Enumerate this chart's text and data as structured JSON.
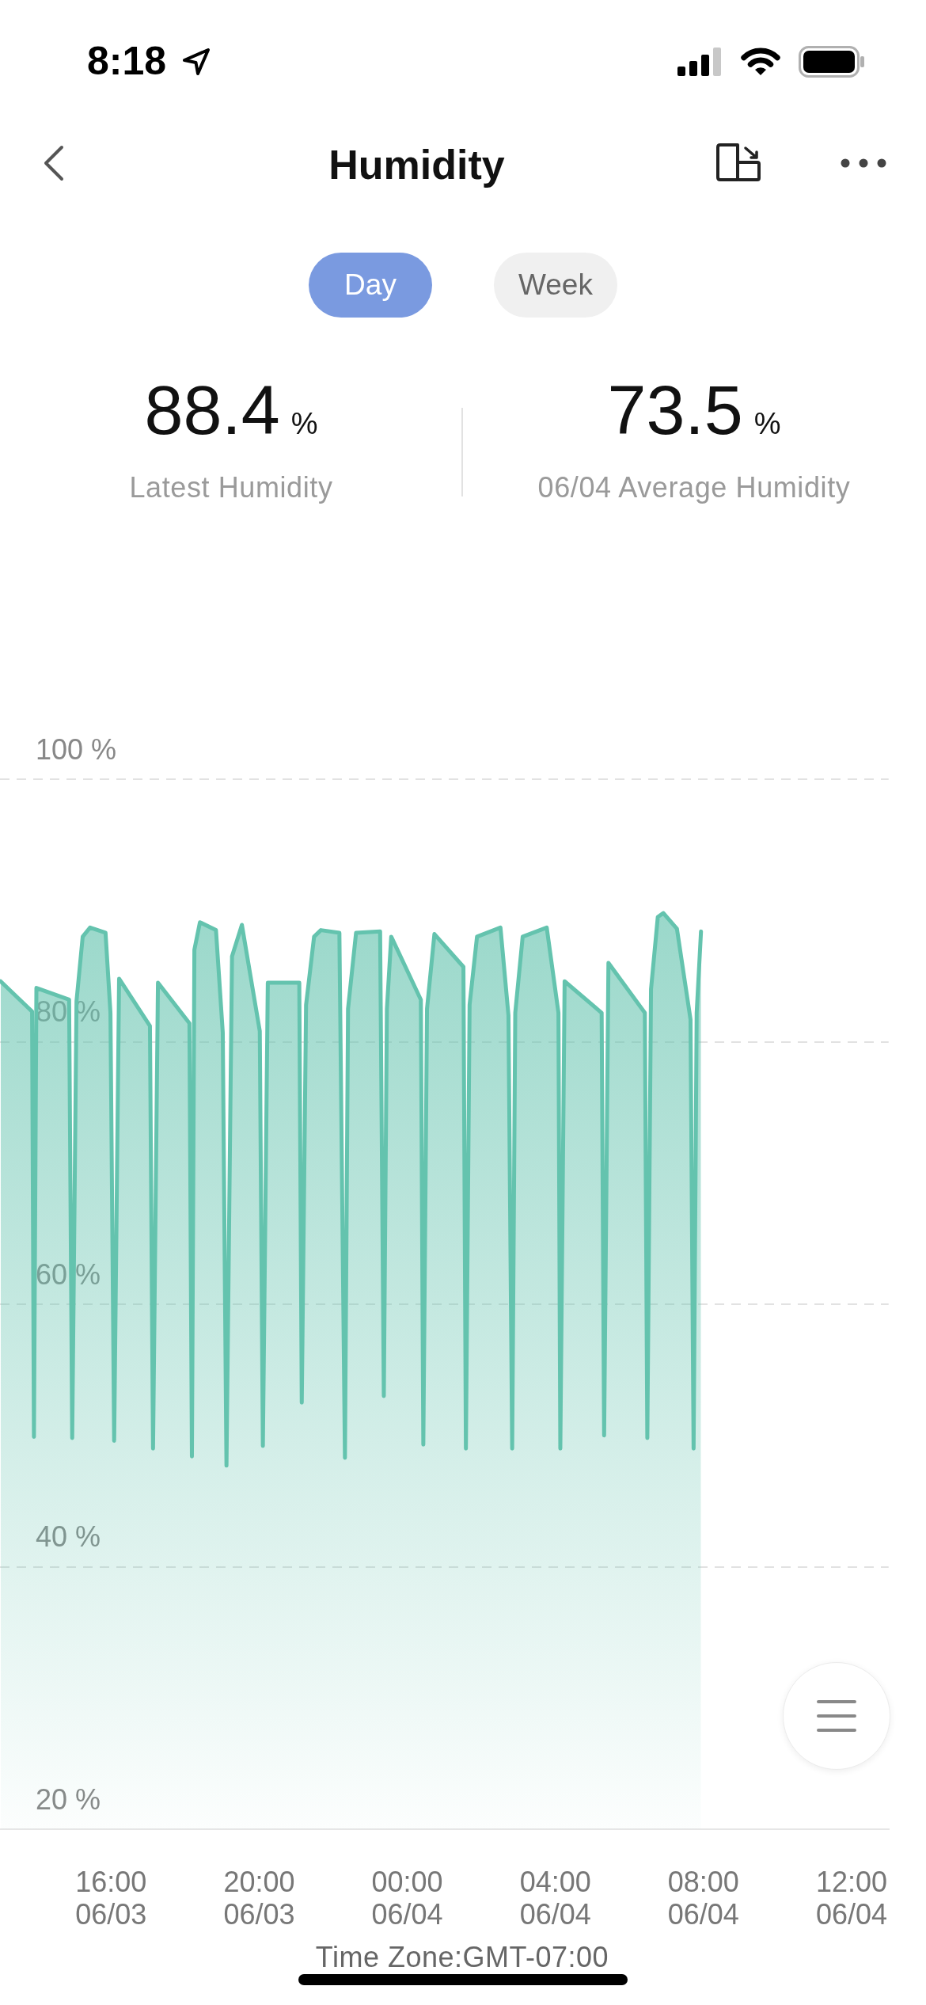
{
  "chart_data": {
    "type": "area",
    "title": "Humidity",
    "x": [
      "--06-03T13:01",
      "--06-03T13:52",
      "--06-03T13:55",
      "--06-03T13:59",
      "--06-03T14:52",
      "--06-03T14:57",
      "--06-03T15:04",
      "--06-03T15:14",
      "--06-03T15:26",
      "--06-03T15:51",
      "--06-03T15:59",
      "--06-03T16:05",
      "--06-03T16:13",
      "--06-03T17:03",
      "--06-03T17:08",
      "--06-03T17:16",
      "--06-03T18:07",
      "--06-03T18:11",
      "--06-03T18:15",
      "--06-03T18:24",
      "--06-03T18:50",
      "--06-03T19:01",
      "--06-03T19:07",
      "--06-03T19:16",
      "--06-03T19:32",
      "--06-03T20:01",
      "--06-03T20:06",
      "--06-03T20:14",
      "--06-03T21:05",
      "--06-03T21:09",
      "--06-03T21:16",
      "--06-03T21:29",
      "--06-03T21:40",
      "--06-03T22:10",
      "--06-03T22:19",
      "--06-03T22:24",
      "--06-03T22:37",
      "--06-03T23:16",
      "--06-03T23:22",
      "--06-03T23:27",
      "--06-03T23:34",
      "--06-04T00:22",
      "--06-04T00:26",
      "--06-04T00:32",
      "--06-04T00:44",
      "--06-04T01:31",
      "--06-04T01:35",
      "--06-04T01:41",
      "--06-04T01:53",
      "--06-04T02:31",
      "--06-04T02:44",
      "--06-04T02:50",
      "--06-04T02:55",
      "--06-04T03:07",
      "--06-04T03:46",
      "--06-04T04:05",
      "--06-04T04:08",
      "--06-04T04:15",
      "--06-04T05:15",
      "--06-04T05:19",
      "--06-04T05:26",
      "--06-04T06:25",
      "--06-04T06:29",
      "--06-04T06:35",
      "--06-04T06:46",
      "--06-04T06:55",
      "--06-04T07:17",
      "--06-04T07:39",
      "--06-04T07:44",
      "--06-04T07:49",
      "--06-04T07:56"
    ],
    "values": [
      84.6,
      82.3,
      49.9,
      84.1,
      83.2,
      49.8,
      83.1,
      88.0,
      88.7,
      88.3,
      82.2,
      49.6,
      84.8,
      81.2,
      49.0,
      84.5,
      81.4,
      48.4,
      87.0,
      89.1,
      88.5,
      80.7,
      47.7,
      86.5,
      88.9,
      80.8,
      49.2,
      84.5,
      84.5,
      52.5,
      82.8,
      88.0,
      88.5,
      88.3,
      48.3,
      82.5,
      88.3,
      88.4,
      53.0,
      82.5,
      88.0,
      83.2,
      49.3,
      82.5,
      88.2,
      85.7,
      49.0,
      82.8,
      88.0,
      88.7,
      82.0,
      49.0,
      82.2,
      88.0,
      88.7,
      82.2,
      49.0,
      84.6,
      82.2,
      50.0,
      86.0,
      82.2,
      49.8,
      84.0,
      89.5,
      89.8,
      88.6,
      81.7,
      49.0,
      82.2,
      88.4
    ],
    "color": "#64c3ae",
    "xlim": [
      "--06-03T13:00",
      "--06-04T13:00"
    ],
    "xticks": [
      {
        "value": "--06-03T16:00",
        "label": "16:00\n06/03"
      },
      {
        "value": "--06-03T20:00",
        "label": "20:00\n06/03"
      },
      {
        "value": "--06-04T00:00",
        "label": "00:00\n06/04"
      },
      {
        "value": "--06-04T04:00",
        "label": "04:00\n06/04"
      },
      {
        "value": "--06-04T08:00",
        "label": "08:00\n06/04"
      },
      {
        "value": "--06-04T12:00",
        "label": "12:00\n06/04"
      }
    ],
    "ylim": [
      20,
      100
    ],
    "yticks": [
      {
        "value": 20,
        "label": "20 %"
      },
      {
        "value": 40,
        "label": "40 %"
      },
      {
        "value": 60,
        "label": "60 %"
      },
      {
        "value": 80,
        "label": "80 %"
      },
      {
        "value": 100,
        "label": "100 %"
      }
    ],
    "grid": "y",
    "annotations": [
      "8:18",
      "Day",
      "Week",
      "88.4",
      "%",
      "Latest Humidity",
      "73.5",
      "%",
      "06/04 Average Humidity",
      "Time Zone:GMT-07:00"
    ]
  }
}
